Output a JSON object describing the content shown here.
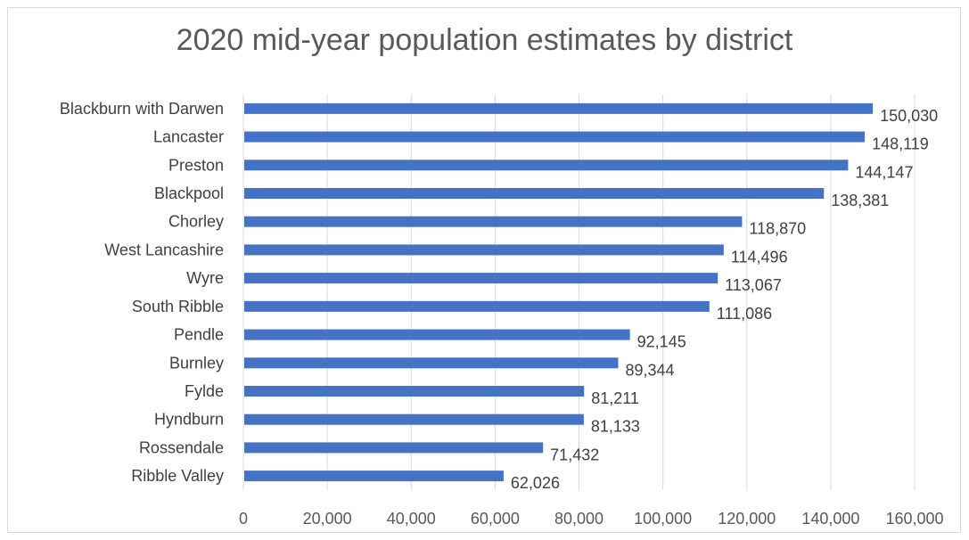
{
  "chart_data": {
    "type": "bar",
    "orientation": "horizontal",
    "title": "2020 mid-year population estimates by district",
    "xlabel": "",
    "ylabel": "",
    "categories": [
      "Blackburn with Darwen",
      "Lancaster",
      "Preston",
      "Blackpool",
      "Chorley",
      "West Lancashire",
      "Wyre",
      "South Ribble",
      "Pendle",
      "Burnley",
      "Fylde",
      "Hyndburn",
      "Rossendale",
      "Ribble Valley"
    ],
    "values": [
      150030,
      148119,
      144147,
      138381,
      118870,
      114496,
      113067,
      111086,
      92145,
      89344,
      81211,
      81133,
      71432,
      62026
    ],
    "data_labels": [
      "150,030",
      "148,119",
      "144,147",
      "138,381",
      "118,870",
      "114,496",
      "113,067",
      "111,086",
      "92,145",
      "89,344",
      "81,211",
      "81,133",
      "71,432",
      "62,026"
    ],
    "xlim": [
      0,
      160000
    ],
    "x_ticks": [
      0,
      20000,
      40000,
      60000,
      80000,
      100000,
      120000,
      140000,
      160000
    ],
    "x_tick_labels": [
      "0",
      "20,000",
      "40,000",
      "60,000",
      "80,000",
      "100,000",
      "120,000",
      "140,000",
      "160,000"
    ],
    "grid": "vertical",
    "legend": "none",
    "bar_color": "#4472c4",
    "grid_color": "#d9d9d9"
  }
}
